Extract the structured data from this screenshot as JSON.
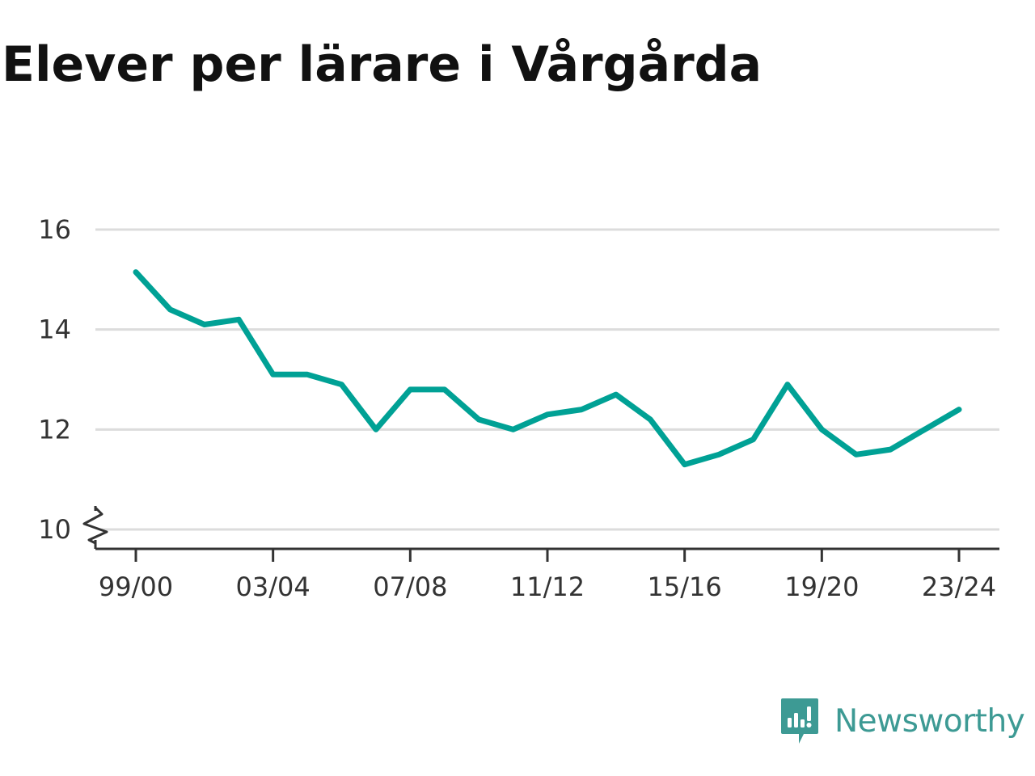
{
  "chart_data": {
    "type": "line",
    "title": "Elever per lärare i Vårgårda",
    "xlabel": "",
    "ylabel": "",
    "x": [
      "99/00",
      "00/01",
      "01/02",
      "02/03",
      "03/04",
      "04/05",
      "05/06",
      "06/07",
      "07/08",
      "08/09",
      "09/10",
      "10/11",
      "11/12",
      "12/13",
      "13/14",
      "14/15",
      "15/16",
      "16/17",
      "17/18",
      "18/19",
      "19/20",
      "20/21",
      "21/22",
      "22/23",
      "23/24"
    ],
    "x_tick_labels": [
      "99/00",
      "03/04",
      "07/08",
      "11/12",
      "15/16",
      "19/20",
      "23/24"
    ],
    "y_ticks": [
      10,
      12,
      14,
      16
    ],
    "ylim": [
      10,
      16
    ],
    "grid": "horizontal",
    "axis_break": true,
    "series": [
      {
        "values": [
          15.15,
          14.4,
          14.1,
          14.2,
          13.1,
          13.1,
          12.9,
          12.0,
          12.8,
          12.8,
          12.2,
          12.0,
          12.3,
          12.4,
          12.7,
          12.2,
          11.3,
          11.5,
          11.8,
          12.9,
          12.0,
          11.5,
          11.6,
          12.0,
          12.4
        ]
      }
    ],
    "colors": {
      "line": "#00a195",
      "grid": "#dcdcdc",
      "axis": "#333333"
    }
  },
  "brand": {
    "name": "Newsworthy",
    "icon": "newsworthy-logo-icon",
    "color": "#3d9a94"
  }
}
